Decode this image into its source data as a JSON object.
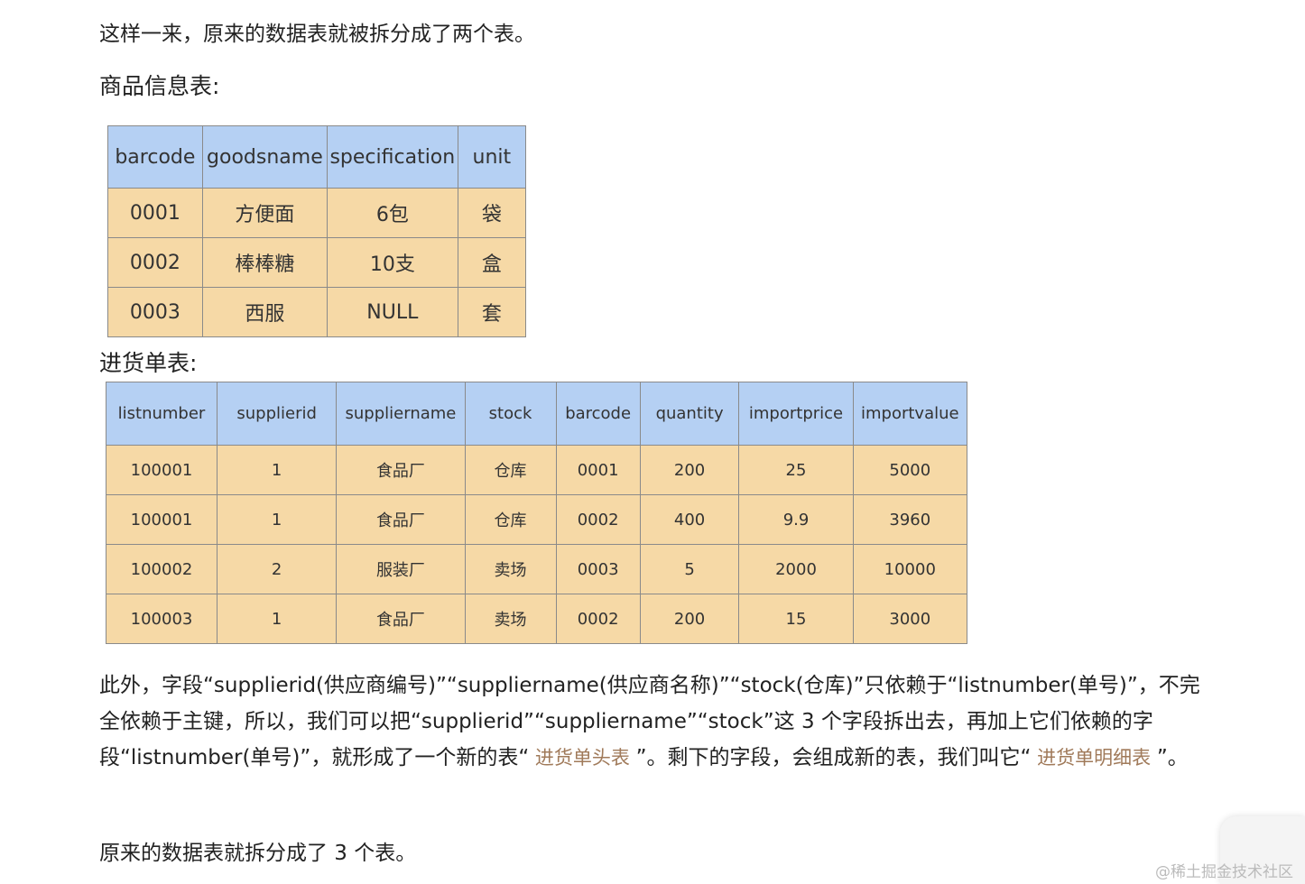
{
  "intro": "这样一来，原来的数据表就被拆分成了两个表。",
  "goods": {
    "title": "商品信息表:",
    "headers": [
      "barcode",
      "goodsname",
      "specification",
      "unit"
    ],
    "rows": [
      [
        "0001",
        "方便面",
        "6包",
        "袋"
      ],
      [
        "0002",
        "棒棒糖",
        "10支",
        "盒"
      ],
      [
        "0003",
        "西服",
        "NULL",
        "套"
      ]
    ]
  },
  "orders": {
    "title": "进货单表:",
    "headers": [
      "listnumber",
      "supplierid",
      "suppliername",
      "stock",
      "barcode",
      "quantity",
      "importprice",
      "importvalue"
    ],
    "rows": [
      [
        "100001",
        "1",
        "食品厂",
        "仓库",
        "0001",
        "200",
        "25",
        "5000"
      ],
      [
        "100001",
        "1",
        "食品厂",
        "仓库",
        "0002",
        "400",
        "9.9",
        "3960"
      ],
      [
        "100002",
        "2",
        "服装厂",
        "卖场",
        "0003",
        "5",
        "2000",
        "10000"
      ],
      [
        "100003",
        "1",
        "食品厂",
        "卖场",
        "0002",
        "200",
        "15",
        "3000"
      ]
    ]
  },
  "paragraph": {
    "part1": "此外，字段“supplierid(供应商编号)”“suppliername(供应商名称)”“stock(仓库)”只依赖于“listnumber(单号)”，不完全依赖于主键，所以，我们可以把“supplierid”“suppliername”“stock”这 3 个字段拆出去，再加上它们依赖的字段“listnumber(单号)”，就形成了一个新的表“",
    "hl1": " 进货单头表 ",
    "part2": "”。剩下的字段，会组成新的表，我们叫它“",
    "hl2": " 进货单明细表 ",
    "part3": "”。"
  },
  "conclusion": "原来的数据表就拆分成了 3 个表。",
  "watermark": "@稀土掘金技术社区",
  "colors": {
    "header": "#b5d0f3",
    "cell": "#f6d9a6",
    "highlight": "#a07a5a"
  }
}
